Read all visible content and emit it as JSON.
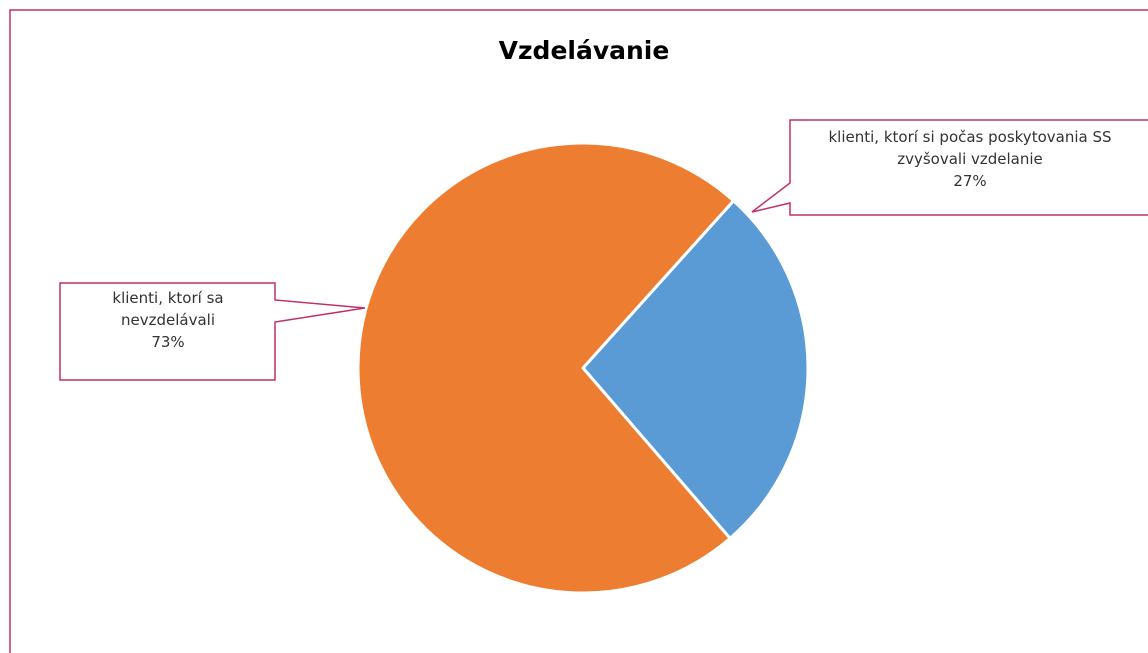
{
  "chart_data": {
    "type": "pie",
    "title": "Vzdelávanie",
    "categories": [
      "klienti, ktorí si počas poskytovania SS zvyšovali vzdelanie",
      "klienti, ktorí sa nevzdelávali"
    ],
    "values": [
      27,
      73
    ],
    "value_labels": [
      "27%",
      "73%"
    ],
    "colors": [
      "#5b9bd5",
      "#ed7d31"
    ]
  }
}
